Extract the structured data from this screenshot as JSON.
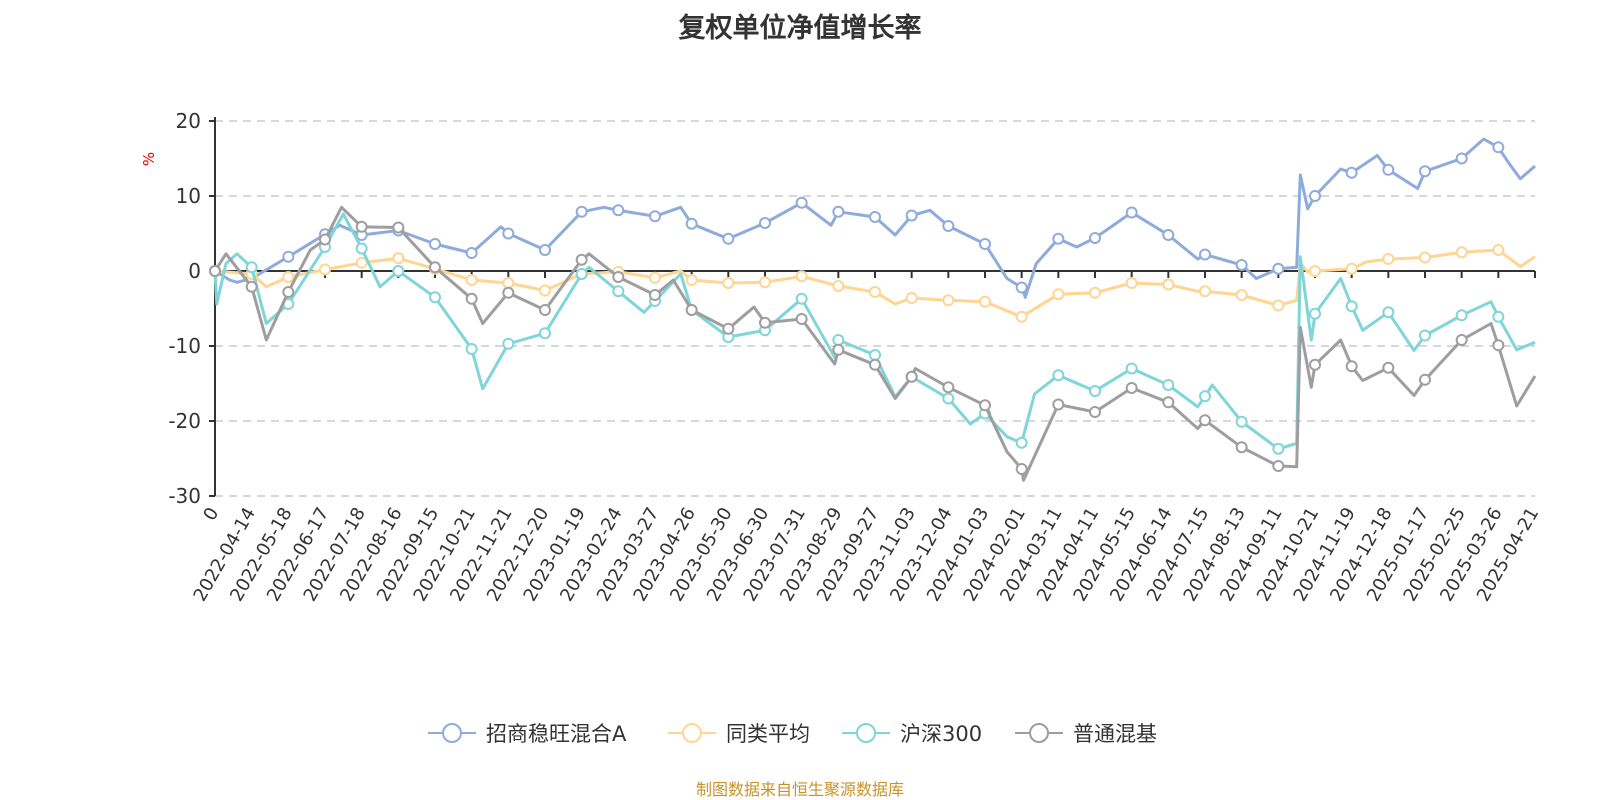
{
  "chart_data": {
    "type": "line",
    "title": "复权单位净值增长率",
    "ylabel": "%",
    "ylim": [
      -30,
      20
    ],
    "yticks": [
      20,
      10,
      0,
      -10,
      -20,
      -30
    ],
    "grid": true,
    "legend_position": "bottom",
    "x_labels": [
      "0",
      "2022-04-14",
      "2022-05-18",
      "2022-06-17",
      "2022-07-18",
      "2022-08-16",
      "2022-09-15",
      "2022-10-21",
      "2022-11-21",
      "2022-12-20",
      "2023-01-19",
      "2023-02-24",
      "2023-03-27",
      "2023-04-26",
      "2023-05-30",
      "2023-06-30",
      "2023-07-31",
      "2023-08-29",
      "2023-09-27",
      "2023-11-03",
      "2023-12-04",
      "2024-01-03",
      "2024-02-01",
      "2024-03-11",
      "2024-04-11",
      "2024-05-15",
      "2024-06-14",
      "2024-07-15",
      "2024-08-13",
      "2024-09-11",
      "2024-10-21",
      "2024-11-19",
      "2024-12-18",
      "2025-01-17",
      "2025-02-25",
      "2025-03-26",
      "2025-04-21"
    ],
    "x_range": [
      0,
      36
    ],
    "series": [
      {
        "name": "招商稳旺混合A",
        "color": "#8EABDB",
        "points": [
          [
            0,
            0
          ],
          [
            0.4,
            -1.2
          ],
          [
            0.6,
            -1.5
          ],
          [
            1,
            -1
          ],
          [
            2,
            1.9
          ],
          [
            3,
            4.9
          ],
          [
            3.4,
            6.1
          ],
          [
            4,
            4.8
          ],
          [
            5,
            5.4
          ],
          [
            6,
            3.6
          ],
          [
            7,
            2.4
          ],
          [
            7.8,
            5.9
          ],
          [
            8,
            5.0
          ],
          [
            9,
            2.8
          ],
          [
            10,
            7.9
          ],
          [
            10.6,
            8.5
          ],
          [
            11,
            8.1
          ],
          [
            12,
            7.3
          ],
          [
            12.7,
            8.5
          ],
          [
            13,
            6.3
          ],
          [
            14,
            4.3
          ],
          [
            15,
            6.4
          ],
          [
            16,
            9.1
          ],
          [
            16.8,
            6.1
          ],
          [
            17,
            7.9
          ],
          [
            18,
            7.2
          ],
          [
            18.55,
            4.8
          ],
          [
            19,
            7.4
          ],
          [
            19.5,
            8.1
          ],
          [
            20,
            6.0
          ],
          [
            21,
            3.6
          ],
          [
            21.6,
            -1.0
          ],
          [
            22,
            -2.2
          ],
          [
            22.1,
            -3.5
          ],
          [
            22.4,
            1.0
          ],
          [
            23,
            4.3
          ],
          [
            23.5,
            3.2
          ],
          [
            24,
            4.4
          ],
          [
            25,
            7.8
          ],
          [
            26,
            4.8
          ],
          [
            26.8,
            1.6
          ],
          [
            27,
            2.2
          ],
          [
            28,
            0.8
          ],
          [
            28.4,
            -1.0
          ],
          [
            29,
            0.3
          ],
          [
            29.5,
            0.5
          ],
          [
            29.6,
            12.8
          ],
          [
            29.8,
            8.3
          ],
          [
            30,
            10.0
          ],
          [
            30.7,
            13.6
          ],
          [
            31,
            13.1
          ],
          [
            31.7,
            15.4
          ],
          [
            32,
            13.5
          ],
          [
            32.8,
            11.0
          ],
          [
            33,
            13.3
          ],
          [
            34,
            15.0
          ],
          [
            34.6,
            17.6
          ],
          [
            35,
            16.5
          ],
          [
            35.3,
            14.3
          ],
          [
            35.6,
            12.3
          ],
          [
            36,
            14.0
          ]
        ]
      },
      {
        "name": "同类平均",
        "color": "#FFD591",
        "points": [
          [
            0,
            0
          ],
          [
            0.5,
            -0.2
          ],
          [
            1,
            -0.4
          ],
          [
            1.4,
            -2.1
          ],
          [
            2,
            -0.8
          ],
          [
            3,
            0.2
          ],
          [
            4,
            1.1
          ],
          [
            5,
            1.7
          ],
          [
            6,
            0.3
          ],
          [
            7,
            -1.2
          ],
          [
            8,
            -1.6
          ],
          [
            9,
            -2.6
          ],
          [
            10,
            -0.4
          ],
          [
            11,
            -0.1
          ],
          [
            12,
            -0.9
          ],
          [
            12.7,
            0
          ],
          [
            13,
            -1.2
          ],
          [
            14,
            -1.6
          ],
          [
            15,
            -1.5
          ],
          [
            16,
            -0.7
          ],
          [
            17,
            -2.0
          ],
          [
            18,
            -2.8
          ],
          [
            18.55,
            -4.4
          ],
          [
            19,
            -3.6
          ],
          [
            20,
            -3.9
          ],
          [
            21,
            -4.1
          ],
          [
            21.6,
            -5.3
          ],
          [
            22,
            -6.1
          ],
          [
            23,
            -3.1
          ],
          [
            24,
            -2.9
          ],
          [
            25,
            -1.6
          ],
          [
            26,
            -1.8
          ],
          [
            26.8,
            -2.7
          ],
          [
            27,
            -2.7
          ],
          [
            28,
            -3.2
          ],
          [
            29,
            -4.6
          ],
          [
            29.5,
            -3.9
          ],
          [
            29.6,
            1.0
          ],
          [
            29.8,
            -0.1
          ],
          [
            30,
            0
          ],
          [
            31,
            0.3
          ],
          [
            31.4,
            1.2
          ],
          [
            32,
            1.6
          ],
          [
            33,
            1.8
          ],
          [
            34,
            2.5
          ],
          [
            35,
            2.8
          ],
          [
            35.6,
            0.6
          ],
          [
            36,
            1.9
          ]
        ]
      },
      {
        "name": "沪深300",
        "color": "#7FD5D8",
        "points": [
          [
            0,
            0
          ],
          [
            0.05,
            -4.4
          ],
          [
            0.3,
            1.0
          ],
          [
            0.6,
            2.3
          ],
          [
            1,
            0.5
          ],
          [
            1.4,
            -7
          ],
          [
            2,
            -4.4
          ],
          [
            3,
            3.2
          ],
          [
            3.5,
            7.6
          ],
          [
            4,
            3.0
          ],
          [
            4.5,
            -2.1
          ],
          [
            5,
            0
          ],
          [
            6,
            -3.5
          ],
          [
            7,
            -10.4
          ],
          [
            7.3,
            -15.7
          ],
          [
            8,
            -9.7
          ],
          [
            9,
            -8.3
          ],
          [
            10,
            -0.4
          ],
          [
            10.2,
            0.5
          ],
          [
            11,
            -2.7
          ],
          [
            11.7,
            -5.5
          ],
          [
            12,
            -4.0
          ],
          [
            12.7,
            -0.4
          ],
          [
            13,
            -5.2
          ],
          [
            14,
            -8.8
          ],
          [
            15,
            -7.9
          ],
          [
            16,
            -3.7
          ],
          [
            16.9,
            -11.5
          ],
          [
            17,
            -9.2
          ],
          [
            18,
            -11.2
          ],
          [
            18.55,
            -16.8
          ],
          [
            19,
            -14.1
          ],
          [
            20,
            -17.0
          ],
          [
            20.6,
            -20.4
          ],
          [
            21,
            -19.0
          ],
          [
            21.6,
            -22.1
          ],
          [
            22,
            -22.9
          ],
          [
            22.35,
            -16.4
          ],
          [
            23,
            -13.9
          ],
          [
            24,
            -16.0
          ],
          [
            25,
            -13.0
          ],
          [
            26,
            -15.2
          ],
          [
            26.8,
            -18.1
          ],
          [
            27,
            -16.7
          ],
          [
            27.2,
            -15.2
          ],
          [
            28,
            -20.1
          ],
          [
            29,
            -23.7
          ],
          [
            29.5,
            -23.0
          ],
          [
            29.6,
            1.9
          ],
          [
            29.9,
            -9.2
          ],
          [
            30,
            -5.7
          ],
          [
            30.7,
            -1.0
          ],
          [
            31,
            -4.7
          ],
          [
            31.3,
            -7.9
          ],
          [
            32,
            -5.5
          ],
          [
            32.7,
            -10.6
          ],
          [
            33,
            -8.6
          ],
          [
            34,
            -5.9
          ],
          [
            34.8,
            -4.1
          ],
          [
            35,
            -6.1
          ],
          [
            35.5,
            -10.5
          ],
          [
            36,
            -9.5
          ]
        ]
      },
      {
        "name": "普通混基",
        "color": "#9E9E9E",
        "points": [
          [
            0,
            0
          ],
          [
            0.3,
            2.3
          ],
          [
            1,
            -2.1
          ],
          [
            1.4,
            -9.2
          ],
          [
            2,
            -2.8
          ],
          [
            2.6,
            2.8
          ],
          [
            3,
            4.2
          ],
          [
            3.45,
            8.5
          ],
          [
            4,
            5.9
          ],
          [
            5,
            5.8
          ],
          [
            6,
            0.5
          ],
          [
            7,
            -3.7
          ],
          [
            7.3,
            -7
          ],
          [
            8,
            -2.9
          ],
          [
            9,
            -5.2
          ],
          [
            10,
            1.5
          ],
          [
            10.2,
            2.3
          ],
          [
            11,
            -0.8
          ],
          [
            12,
            -3.2
          ],
          [
            12.5,
            -1.2
          ],
          [
            13,
            -5.2
          ],
          [
            14,
            -7.7
          ],
          [
            14.7,
            -4.8
          ],
          [
            15,
            -6.9
          ],
          [
            16,
            -6.4
          ],
          [
            16.9,
            -12.4
          ],
          [
            17,
            -10.5
          ],
          [
            18,
            -12.5
          ],
          [
            18.55,
            -17
          ],
          [
            19,
            -14.1
          ],
          [
            19.1,
            -13
          ],
          [
            20,
            -15.5
          ],
          [
            21,
            -17.9
          ],
          [
            21.6,
            -24.1
          ],
          [
            22,
            -26.4
          ],
          [
            22.05,
            -27.9
          ],
          [
            23,
            -17.8
          ],
          [
            24,
            -18.8
          ],
          [
            25,
            -15.6
          ],
          [
            26,
            -17.5
          ],
          [
            26.8,
            -21
          ],
          [
            27,
            -19.9
          ],
          [
            28,
            -23.5
          ],
          [
            29,
            -26.0
          ],
          [
            29.5,
            -26.1
          ],
          [
            29.6,
            -7.5
          ],
          [
            29.9,
            -15.5
          ],
          [
            30,
            -12.5
          ],
          [
            30.7,
            -9.2
          ],
          [
            31,
            -12.7
          ],
          [
            31.3,
            -14.6
          ],
          [
            32,
            -12.9
          ],
          [
            32.7,
            -16.6
          ],
          [
            33,
            -14.5
          ],
          [
            34,
            -9.2
          ],
          [
            34.8,
            -7.0
          ],
          [
            35,
            -9.9
          ],
          [
            35.5,
            -18
          ],
          [
            36,
            -14.0
          ]
        ]
      }
    ],
    "source": "制图数据来自恒生聚源数据库"
  }
}
